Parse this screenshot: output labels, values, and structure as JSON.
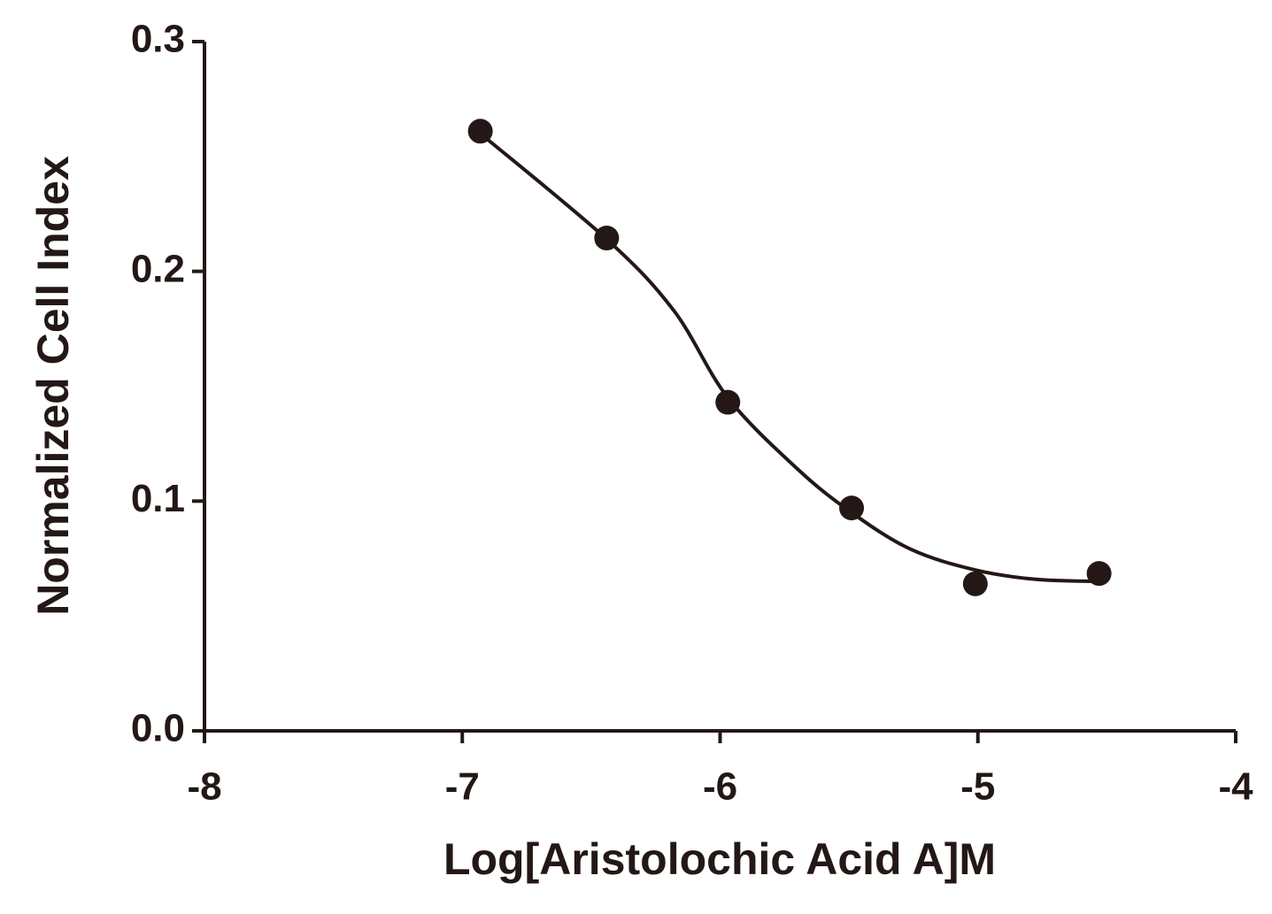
{
  "chart_data": {
    "type": "scatter",
    "xlabel": "Log[Aristolochic Acid A]M",
    "ylabel": "Normalized Cell Index",
    "xlim": [
      -8,
      -4
    ],
    "xticks": [
      -8,
      -7,
      -6,
      -5,
      -4
    ],
    "ylim": [
      0,
      0.3
    ],
    "yticks": [
      {
        "value": 0,
        "label": "0.0"
      },
      0.1,
      0.2,
      0.3
    ],
    "color": "#231815",
    "series": [
      {
        "x": [
          -6.93,
          -6.44,
          -5.97,
          -5.49,
          -5.01,
          -4.53
        ],
        "values": [
          0.261,
          0.2145,
          0.143,
          0.097,
          0.064,
          0.0685
        ]
      },
      {
        "x": [
          -6.93,
          -6.44,
          -6.18,
          -5.97,
          -5.7,
          -5.49,
          -5.26,
          -5.01,
          -4.78,
          -4.53
        ],
        "values": [
          0.26,
          0.214,
          0.183,
          0.145,
          0.114,
          0.095,
          0.079,
          0.07,
          0.066,
          0.065
        ]
      }
    ]
  }
}
